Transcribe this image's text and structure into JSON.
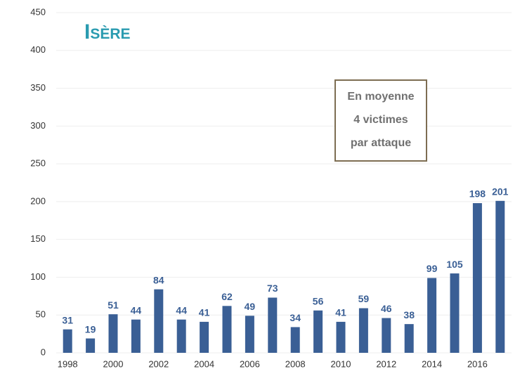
{
  "chart_data": {
    "type": "bar",
    "title": "Isère",
    "annotation": [
      "En moyenne",
      "4 victimes",
      "par attaque"
    ],
    "categories": [
      "1998",
      null,
      "2000",
      null,
      "2002",
      null,
      "2004",
      null,
      "2006",
      null,
      "2008",
      null,
      "2010",
      null,
      "2012",
      null,
      "2014",
      null,
      "2016",
      null
    ],
    "values": [
      31,
      19,
      51,
      44,
      84,
      44,
      41,
      62,
      49,
      73,
      34,
      56,
      41,
      59,
      46,
      38,
      99,
      105,
      198,
      201
    ],
    "color": "#3a5f95",
    "ylim": [
      0,
      450
    ],
    "yticks": [
      0,
      50,
      100,
      150,
      200,
      250,
      300,
      350,
      400,
      450
    ],
    "grid": true
  }
}
